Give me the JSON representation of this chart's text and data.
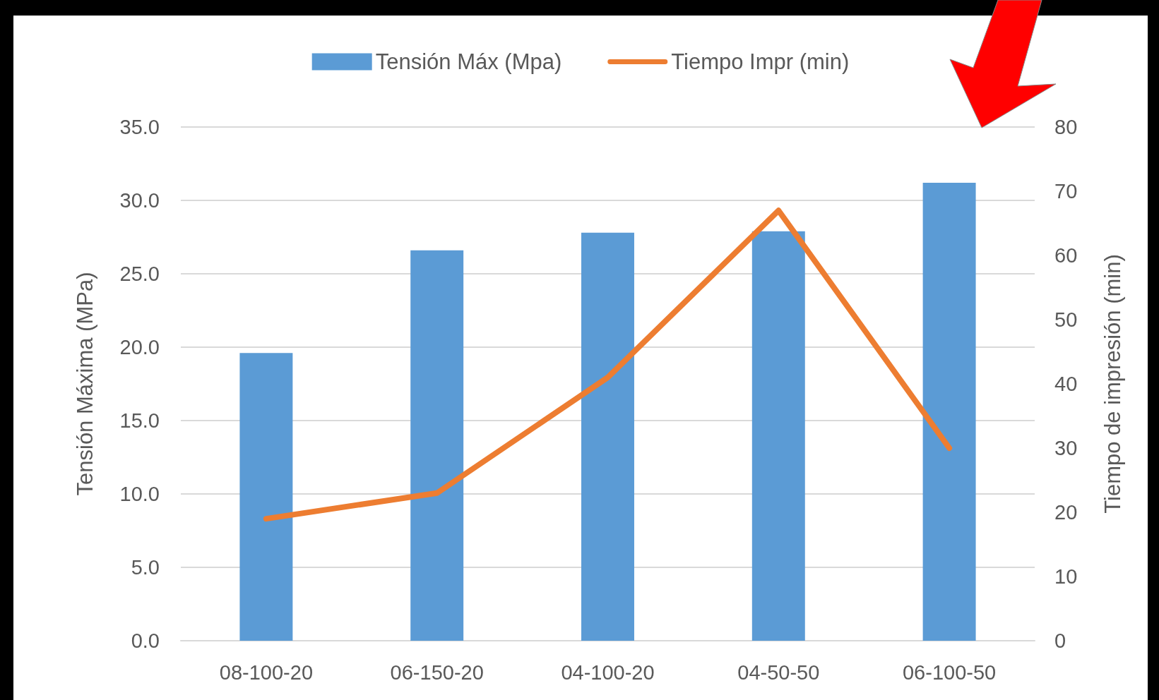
{
  "chart_data": {
    "type": "bar",
    "categories": [
      "08-100-20",
      "06-150-20",
      "04-100-20",
      "04-50-50",
      "06-100-50"
    ],
    "ylabel": "Tensión Máxima (MPa)",
    "y2label": "Tiempo de impresión (min)",
    "series": [
      {
        "name": "Tensión Máx (Mpa)",
        "color": "#5b9bd5",
        "values": [
          19.6,
          26.6,
          27.8,
          27.9,
          31.2
        ]
      },
      {
        "name": "Tiempo Impr (min)",
        "type": "line",
        "axis": "y2",
        "color": "#ed7d31",
        "values": [
          19,
          23,
          41,
          67,
          30
        ]
      }
    ],
    "ylim": [
      0,
      35
    ],
    "yticks": [
      {
        "value": 0,
        "label": "0.0"
      },
      {
        "value": 5,
        "label": "5.0"
      },
      {
        "value": 10,
        "label": "10.0"
      },
      {
        "value": 15,
        "label": "15.0"
      },
      {
        "value": 20,
        "label": "20.0"
      },
      {
        "value": 25,
        "label": "25.0"
      },
      {
        "value": 30,
        "label": "30.0"
      },
      {
        "value": 35,
        "label": "35.0"
      }
    ],
    "y2lim": [
      0,
      80
    ],
    "y2ticks": [
      0,
      10,
      20,
      30,
      40,
      50,
      60,
      70,
      80
    ],
    "grid": "y",
    "legend": "top",
    "line_style": "solid"
  }
}
